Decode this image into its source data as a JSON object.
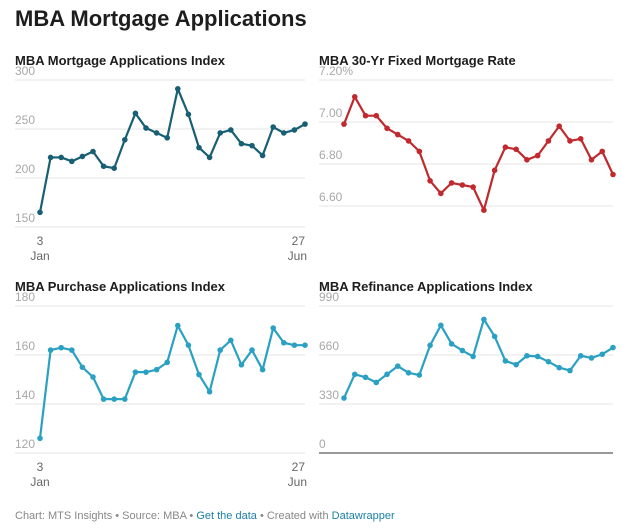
{
  "page": {
    "title": "MBA Mortgage Applications"
  },
  "footer": {
    "chart_by": "Chart: MTS Insights",
    "sep1": " • ",
    "source": "Source: MBA",
    "sep2": " • ",
    "get_data": "Get the data",
    "sep3": " • ",
    "created_with": "Created with ",
    "tool": "Datawrapper"
  },
  "chart_data": [
    {
      "type": "line",
      "title": "MBA Mortgage Applications Index",
      "color": "#185f73",
      "ylim": [
        150,
        300
      ],
      "yticks": [
        150,
        200,
        250,
        300
      ],
      "ytick_labels": [
        "150",
        "200",
        "250",
        "300"
      ],
      "xlabels": [
        {
          "index": 0,
          "day": "3",
          "month": "Jan"
        },
        {
          "index": 25,
          "day": "27",
          "month": "Jun"
        }
      ],
      "values": [
        165,
        221,
        221,
        217,
        222,
        227,
        212,
        210,
        239,
        266,
        251,
        246,
        241,
        291,
        265,
        231,
        221,
        246,
        249,
        235,
        233,
        223,
        252,
        246,
        249,
        255
      ],
      "baseline": false
    },
    {
      "type": "line",
      "title": "MBA 30-Yr Fixed Mortgage Rate",
      "color": "#c0292d",
      "ylim": [
        6.5,
        7.2
      ],
      "yticks": [
        6.6,
        6.8,
        7.0,
        7.2
      ],
      "ytick_labels": [
        "6.60",
        "6.80",
        "7.00",
        "7.20%"
      ],
      "xlabels": [],
      "values": [
        6.99,
        7.12,
        7.03,
        7.03,
        6.97,
        6.94,
        6.91,
        6.86,
        6.72,
        6.66,
        6.71,
        6.7,
        6.69,
        6.58,
        6.77,
        6.88,
        6.87,
        6.82,
        6.84,
        6.91,
        6.98,
        6.91,
        6.92,
        6.82,
        6.86,
        6.75
      ],
      "baseline": false
    },
    {
      "type": "line",
      "title": "MBA Purchase Applications Index",
      "color": "#2aa1c3",
      "ylim": [
        120,
        180
      ],
      "yticks": [
        120,
        140,
        160,
        180
      ],
      "ytick_labels": [
        "120",
        "140",
        "160",
        "180"
      ],
      "xlabels": [
        {
          "index": 0,
          "day": "3",
          "month": "Jan"
        },
        {
          "index": 25,
          "day": "27",
          "month": "Jun"
        }
      ],
      "values": [
        126,
        162,
        163,
        162,
        155,
        151,
        142,
        142,
        142,
        153,
        153,
        154,
        157,
        172,
        164,
        152,
        145,
        162,
        166,
        156,
        162,
        154,
        171,
        165,
        164,
        164
      ],
      "baseline": false
    },
    {
      "type": "line",
      "title": "MBA Refinance Applications Index",
      "color": "#2aa1c3",
      "ylim": [
        0,
        990
      ],
      "yticks": [
        0,
        330,
        660,
        990
      ],
      "ytick_labels": [
        "0",
        "330",
        "660",
        "990"
      ],
      "xlabels": [],
      "values": [
        370,
        530,
        510,
        475,
        530,
        585,
        540,
        525,
        725,
        860,
        735,
        690,
        650,
        900,
        785,
        620,
        595,
        655,
        650,
        615,
        575,
        555,
        655,
        640,
        665,
        710
      ],
      "baseline": true
    }
  ]
}
